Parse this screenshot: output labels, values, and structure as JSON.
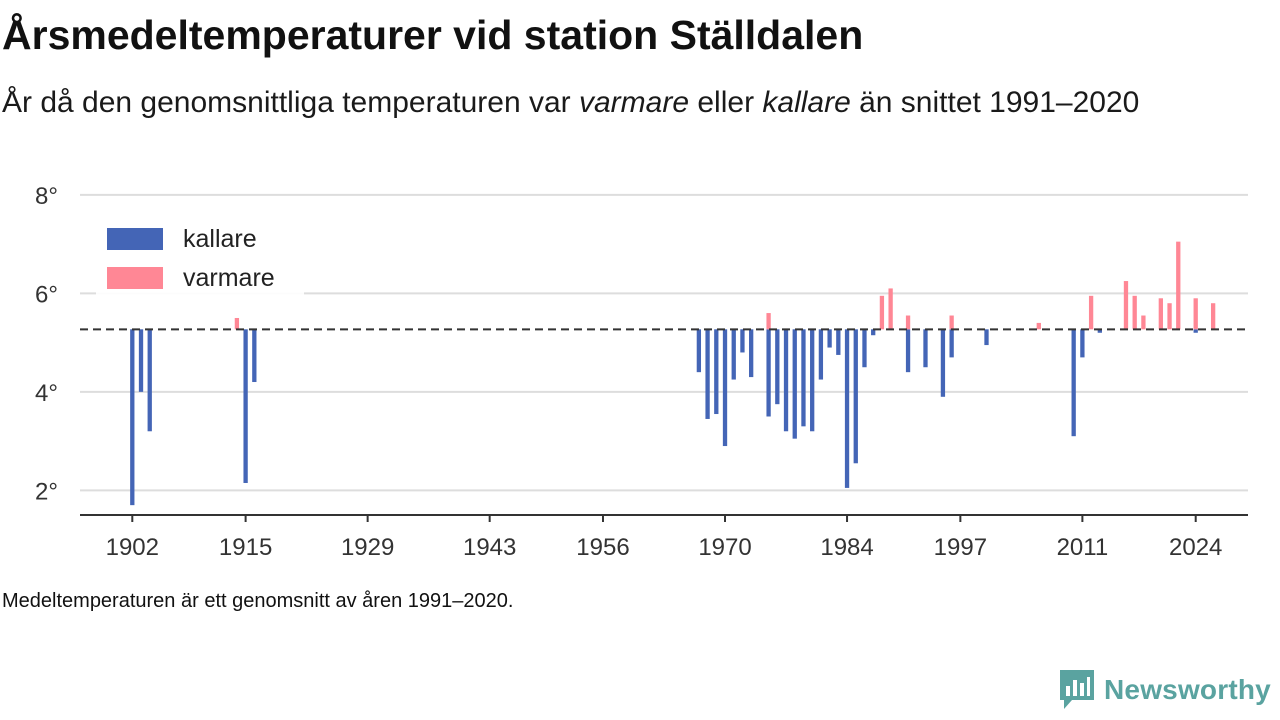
{
  "header": {
    "title": "Årsmedeltemperaturer vid station Ställdalen",
    "subtitle_prefix": "År då den genomsnittliga temperaturen var ",
    "subtitle_warm": "varmare",
    "subtitle_mid": " eller ",
    "subtitle_cold": "kallare",
    "subtitle_suffix": " än snittet 1991–2020"
  },
  "footnote": "Medeltemperaturen är ett genomsnitt av åren 1991–2020.",
  "brand": {
    "name": "Newsworthy",
    "icon": "newsworthy-logo-icon"
  },
  "colors": {
    "colder": "#4465b6",
    "warmer": "#ff8795",
    "grid": "#dddddd",
    "axis": "#333333",
    "reference": "#333333"
  },
  "chart_data": {
    "type": "bar",
    "title": "Årsmedeltemperaturer vid station Ställdalen",
    "xlabel": "",
    "ylabel": "",
    "baseline": 5.27,
    "xlim": [
      1896,
      2030
    ],
    "ylim": [
      1.5,
      8.2
    ],
    "x_ticks": [
      1902,
      1915,
      1929,
      1943,
      1956,
      1970,
      1984,
      1997,
      2011,
      2024
    ],
    "y_ticks": [
      2,
      4,
      6,
      8
    ],
    "y_tick_labels": [
      "2°",
      "4°",
      "6°",
      "8°"
    ],
    "grid": true,
    "legend_position": "top-left",
    "series": [
      {
        "name": "kallare",
        "color": "#4465b6",
        "x": [
          1902,
          1903,
          1904,
          1915,
          1916,
          1967,
          1968,
          1969,
          1970,
          1971,
          1972,
          1973,
          1975,
          1976,
          1977,
          1978,
          1979,
          1980,
          1981,
          1982,
          1983,
          1984,
          1985,
          1986,
          1987,
          1991,
          1993,
          1995,
          1996,
          2000,
          2010,
          2011,
          2013,
          2024
        ],
        "values": [
          1.7,
          4.0,
          3.2,
          2.15,
          4.2,
          4.4,
          3.45,
          3.55,
          2.9,
          4.25,
          4.8,
          4.3,
          3.5,
          3.75,
          3.2,
          3.05,
          3.3,
          3.2,
          4.25,
          4.9,
          4.75,
          2.05,
          2.55,
          4.5,
          5.15,
          4.4,
          4.5,
          3.9,
          4.7,
          4.95,
          3.1,
          4.7,
          5.2,
          5.2
        ]
      },
      {
        "name": "varmare",
        "color": "#ff8795",
        "x": [
          1914,
          1975,
          1988,
          1989,
          1991,
          1996,
          2006,
          2012,
          2016,
          2017,
          2018,
          2020,
          2021,
          2022,
          2024,
          2026
        ],
        "values": [
          5.5,
          5.6,
          5.95,
          6.1,
          5.55,
          5.55,
          5.4,
          5.95,
          6.25,
          5.95,
          5.55,
          5.9,
          5.8,
          7.05,
          5.9,
          5.8
        ]
      }
    ]
  }
}
